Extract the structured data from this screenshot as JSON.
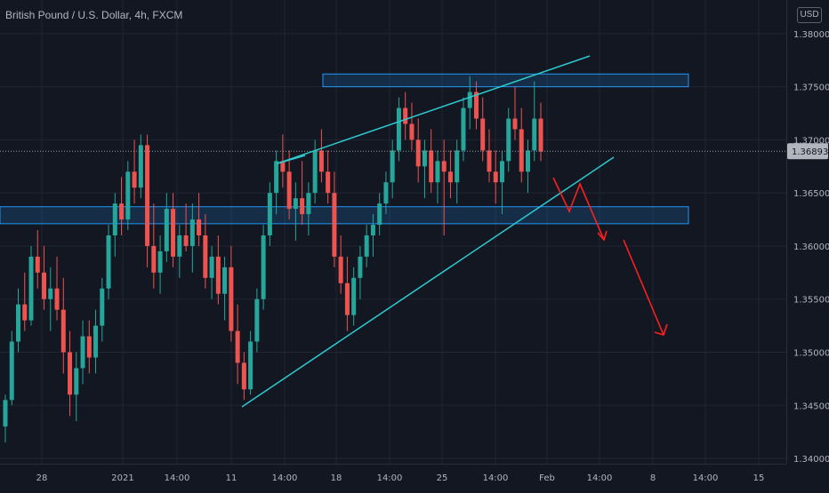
{
  "header": {
    "title": "British Pound / U.S. Dollar, 4h, FXCM"
  },
  "currency_badge": "USD",
  "current_price": "1.36893",
  "colors": {
    "background": "#131722",
    "grid": "#1f2533",
    "up": "#26a69a",
    "down": "#ef5350",
    "trendline": "#2ec9cf",
    "zone_border": "#2196f3",
    "zone_fill": "rgba(33,150,243,0.18)",
    "projection": "#ff1f1f",
    "price_label_bg": "#b2b5be",
    "text": "#b2b5be"
  },
  "chart_data": {
    "type": "candlestick",
    "title": "British Pound / U.S. Dollar, 4h, FXCM",
    "ylim": [
      1.3395,
      1.3825
    ],
    "y_ticks": [
      "1.38000",
      "1.37500",
      "1.37000",
      "1.36500",
      "1.36000",
      "1.35500",
      "1.35000",
      "1.34500",
      "1.34000"
    ],
    "x_ticks": [
      "28",
      "2021",
      "14:00",
      "11",
      "14:00",
      "18",
      "14:00",
      "25",
      "14:00",
      "Feb",
      "14:00",
      "8",
      "14:00",
      "15"
    ],
    "candles_note": "OHLC values estimated from the image, one candle per bar index",
    "ohlc": [
      [
        1.343,
        1.346,
        1.3415,
        1.3455
      ],
      [
        1.3455,
        1.352,
        1.345,
        1.351
      ],
      [
        1.351,
        1.356,
        1.35,
        1.3545
      ],
      [
        1.3545,
        1.3575,
        1.352,
        1.353
      ],
      [
        1.353,
        1.36,
        1.3525,
        1.359
      ],
      [
        1.359,
        1.3615,
        1.356,
        1.3575
      ],
      [
        1.3575,
        1.36,
        1.354,
        1.355
      ],
      [
        1.355,
        1.358,
        1.352,
        1.356
      ],
      [
        1.356,
        1.359,
        1.353,
        1.354
      ],
      [
        1.354,
        1.357,
        1.348,
        1.35
      ],
      [
        1.35,
        1.352,
        1.344,
        1.346
      ],
      [
        1.346,
        1.35,
        1.3435,
        1.3485
      ],
      [
        1.3485,
        1.353,
        1.347,
        1.3515
      ],
      [
        1.3515,
        1.353,
        1.348,
        1.3495
      ],
      [
        1.3495,
        1.354,
        1.348,
        1.3525
      ],
      [
        1.3525,
        1.357,
        1.351,
        1.356
      ],
      [
        1.356,
        1.362,
        1.355,
        1.361
      ],
      [
        1.361,
        1.365,
        1.359,
        1.364
      ],
      [
        1.364,
        1.3665,
        1.361,
        1.3625
      ],
      [
        1.3625,
        1.368,
        1.3615,
        1.367
      ],
      [
        1.367,
        1.37,
        1.364,
        1.3655
      ],
      [
        1.3655,
        1.3705,
        1.3645,
        1.3695
      ],
      [
        1.3695,
        1.3705,
        1.358,
        1.36
      ],
      [
        1.36,
        1.364,
        1.356,
        1.3575
      ],
      [
        1.3575,
        1.361,
        1.3555,
        1.3595
      ],
      [
        1.3595,
        1.365,
        1.3585,
        1.3635
      ],
      [
        1.3635,
        1.365,
        1.358,
        1.359
      ],
      [
        1.359,
        1.362,
        1.357,
        1.361
      ],
      [
        1.361,
        1.364,
        1.3595,
        1.36
      ],
      [
        1.36,
        1.364,
        1.3575,
        1.3625
      ],
      [
        1.3625,
        1.365,
        1.36,
        1.361
      ],
      [
        1.361,
        1.363,
        1.356,
        1.357
      ],
      [
        1.357,
        1.36,
        1.355,
        1.359
      ],
      [
        1.359,
        1.361,
        1.3545,
        1.3555
      ],
      [
        1.3555,
        1.359,
        1.353,
        1.358
      ],
      [
        1.358,
        1.36,
        1.351,
        1.352
      ],
      [
        1.352,
        1.3545,
        1.347,
        1.349
      ],
      [
        1.349,
        1.35,
        1.3455,
        1.3465
      ],
      [
        1.3465,
        1.352,
        1.346,
        1.351
      ],
      [
        1.351,
        1.356,
        1.35,
        1.355
      ],
      [
        1.355,
        1.362,
        1.354,
        1.361
      ],
      [
        1.361,
        1.366,
        1.36,
        1.365
      ],
      [
        1.365,
        1.369,
        1.363,
        1.368
      ],
      [
        1.368,
        1.3705,
        1.3655,
        1.367
      ],
      [
        1.367,
        1.369,
        1.3625,
        1.3635
      ],
      [
        1.3635,
        1.366,
        1.3605,
        1.3645
      ],
      [
        1.3645,
        1.368,
        1.362,
        1.363
      ],
      [
        1.363,
        1.366,
        1.361,
        1.365
      ],
      [
        1.365,
        1.37,
        1.364,
        1.369
      ],
      [
        1.369,
        1.371,
        1.366,
        1.367
      ],
      [
        1.367,
        1.369,
        1.364,
        1.365
      ],
      [
        1.365,
        1.367,
        1.358,
        1.359
      ],
      [
        1.359,
        1.361,
        1.3555,
        1.3565
      ],
      [
        1.3565,
        1.359,
        1.352,
        1.3535
      ],
      [
        1.3535,
        1.358,
        1.3525,
        1.357
      ],
      [
        1.357,
        1.36,
        1.355,
        1.359
      ],
      [
        1.359,
        1.362,
        1.358,
        1.361
      ],
      [
        1.361,
        1.363,
        1.359,
        1.362
      ],
      [
        1.362,
        1.365,
        1.361,
        1.364
      ],
      [
        1.364,
        1.367,
        1.363,
        1.366
      ],
      [
        1.366,
        1.37,
        1.3645,
        1.369
      ],
      [
        1.369,
        1.374,
        1.368,
        1.373
      ],
      [
        1.373,
        1.3745,
        1.37,
        1.3715
      ],
      [
        1.3715,
        1.3735,
        1.369,
        1.37
      ],
      [
        1.37,
        1.372,
        1.366,
        1.3675
      ],
      [
        1.3675,
        1.37,
        1.3645,
        1.369
      ],
      [
        1.369,
        1.371,
        1.365,
        1.366
      ],
      [
        1.366,
        1.369,
        1.364,
        1.368
      ],
      [
        1.368,
        1.37,
        1.361,
        1.367
      ],
      [
        1.367,
        1.369,
        1.3645,
        1.366
      ],
      [
        1.366,
        1.37,
        1.364,
        1.369
      ],
      [
        1.369,
        1.374,
        1.368,
        1.373
      ],
      [
        1.373,
        1.376,
        1.371,
        1.3745
      ],
      [
        1.3745,
        1.3755,
        1.371,
        1.372
      ],
      [
        1.372,
        1.374,
        1.368,
        1.369
      ],
      [
        1.369,
        1.371,
        1.366,
        1.367
      ],
      [
        1.367,
        1.369,
        1.364,
        1.366
      ],
      [
        1.366,
        1.369,
        1.363,
        1.368
      ],
      [
        1.368,
        1.373,
        1.367,
        1.372
      ],
      [
        1.372,
        1.375,
        1.37,
        1.371
      ],
      [
        1.371,
        1.373,
        1.366,
        1.367
      ],
      [
        1.367,
        1.37,
        1.365,
        1.369
      ],
      [
        1.369,
        1.3755,
        1.368,
        1.372
      ],
      [
        1.372,
        1.3735,
        1.368,
        1.3689
      ]
    ],
    "drawings": {
      "resistance_zone": [
        1.375,
        1.3762
      ],
      "support_zone": [
        1.3621,
        1.3637
      ],
      "current_price_line": 1.36893
    }
  }
}
